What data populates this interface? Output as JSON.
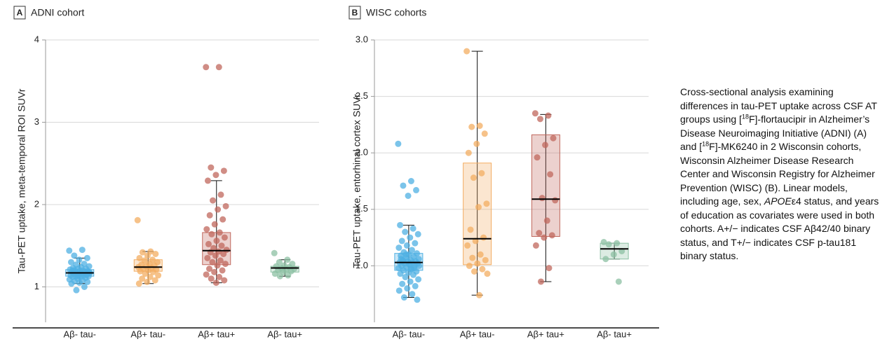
{
  "chart_data": [
    {
      "type": "box",
      "panel_label": "A",
      "title": "ADNI cohort",
      "y_label": "Tau-PET uptake, meta-temporal ROI SUVr",
      "categories": [
        "Aβ- tau-",
        "Aβ+ tau-",
        "Aβ+ tau+",
        "Aβ- tau+"
      ],
      "ylim": [
        0.57,
        4
      ],
      "yticks": [
        1,
        2,
        3,
        4
      ],
      "grid": true,
      "boxes": [
        {
          "color": "#4fb0e3",
          "low": 1.04,
          "q1": 1.13,
          "median": 1.17,
          "q3": 1.21,
          "high": 1.35,
          "points": [
            1.44,
            1.45,
            1.38,
            1.35,
            1.33,
            1.3,
            1.28,
            1.27,
            1.25,
            1.24,
            1.23,
            1.22,
            1.22,
            1.21,
            1.2,
            1.2,
            1.19,
            1.19,
            1.18,
            1.18,
            1.17,
            1.17,
            1.16,
            1.16,
            1.15,
            1.15,
            1.14,
            1.14,
            1.13,
            1.13,
            1.12,
            1.12,
            1.11,
            1.1,
            1.09,
            1.08,
            1.07,
            1.06,
            1.05,
            1.04,
            1.0,
            0.96,
            1.18,
            1.16,
            1.2,
            1.15,
            1.13
          ]
        },
        {
          "color": "#f3ad62",
          "low": 1.04,
          "q1": 1.19,
          "median": 1.24,
          "q3": 1.33,
          "high": 1.43,
          "points": [
            1.81,
            1.43,
            1.42,
            1.4,
            1.38,
            1.35,
            1.33,
            1.32,
            1.3,
            1.28,
            1.27,
            1.26,
            1.25,
            1.24,
            1.23,
            1.22,
            1.21,
            1.2,
            1.19,
            1.18,
            1.16,
            1.14,
            1.12,
            1.1,
            1.08,
            1.06,
            1.04
          ]
        },
        {
          "color": "#c0675c",
          "low": 1.05,
          "q1": 1.27,
          "median": 1.44,
          "q3": 1.66,
          "high": 2.29,
          "points": [
            3.67,
            3.67,
            2.45,
            2.41,
            2.36,
            2.29,
            2.12,
            2.05,
            1.98,
            1.94,
            1.87,
            1.82,
            1.76,
            1.7,
            1.66,
            1.64,
            1.6,
            1.56,
            1.52,
            1.5,
            1.47,
            1.45,
            1.43,
            1.42,
            1.4,
            1.38,
            1.35,
            1.32,
            1.3,
            1.28,
            1.26,
            1.22,
            1.2,
            1.18,
            1.15,
            1.12,
            1.1,
            1.08,
            1.05
          ]
        },
        {
          "color": "#8cc0a3",
          "low": 1.13,
          "q1": 1.18,
          "median": 1.23,
          "q3": 1.25,
          "high": 1.33,
          "points": [
            1.41,
            1.33,
            1.3,
            1.28,
            1.26,
            1.25,
            1.24,
            1.23,
            1.22,
            1.21,
            1.2,
            1.19,
            1.18,
            1.16,
            1.14,
            1.13
          ]
        }
      ]
    },
    {
      "type": "box",
      "panel_label": "B",
      "title": "WISC cohorts",
      "y_label": "Tau-PET uptake, entorhinal cortex SUVr",
      "categories": [
        "Aβ- tau-",
        "Aβ+ tau-",
        "Aβ+ tau+",
        "Aβ- tau+"
      ],
      "ylim": [
        0.5,
        3
      ],
      "yticks": [
        {
          "value": 1,
          "label": "1.0"
        },
        1.5,
        {
          "value": 2,
          "label": "2.0"
        },
        2.5,
        {
          "value": 3,
          "label": "3.0"
        }
      ],
      "grid": true,
      "boxes": [
        {
          "color": "#4fb0e3",
          "low": 0.72,
          "q1": 0.96,
          "median": 1.03,
          "q3": 1.11,
          "high": 1.36,
          "points": [
            2.08,
            1.75,
            1.71,
            1.67,
            1.62,
            1.36,
            1.33,
            1.3,
            1.28,
            1.25,
            1.22,
            1.2,
            1.18,
            1.16,
            1.14,
            1.12,
            1.11,
            1.1,
            1.09,
            1.08,
            1.07,
            1.06,
            1.05,
            1.05,
            1.04,
            1.04,
            1.03,
            1.03,
            1.02,
            1.02,
            1.01,
            1.0,
            1.0,
            0.99,
            0.98,
            0.97,
            0.96,
            0.95,
            0.94,
            0.93,
            0.92,
            0.9,
            0.88,
            0.86,
            0.84,
            0.82,
            0.8,
            0.78,
            0.75,
            0.72,
            0.7,
            1.02,
            1.06,
            0.98,
            1.1,
            1.0,
            0.97,
            1.04
          ]
        },
        {
          "color": "#f3ad62",
          "low": 0.74,
          "q1": 1.01,
          "median": 1.24,
          "q3": 1.91,
          "high": 2.9,
          "points": [
            2.9,
            2.24,
            2.23,
            2.17,
            2.08,
            2.0,
            1.82,
            1.78,
            1.55,
            1.52,
            1.32,
            1.25,
            1.22,
            1.18,
            1.1,
            1.07,
            1.05,
            1.02,
            1.0,
            0.97,
            0.95,
            0.93,
            0.74
          ]
        },
        {
          "color": "#c0675c",
          "low": 0.86,
          "q1": 1.26,
          "median": 1.59,
          "q3": 2.16,
          "high": 2.34,
          "points": [
            2.35,
            2.33,
            2.3,
            2.13,
            2.07,
            1.96,
            1.81,
            1.6,
            1.58,
            1.4,
            1.29,
            1.27,
            1.25,
            1.18,
            0.98,
            0.86
          ]
        },
        {
          "color": "#8cc0a3",
          "low": 1.06,
          "q1": 1.06,
          "median": 1.15,
          "q3": 1.2,
          "high": 1.2,
          "points": [
            1.21,
            1.2,
            1.19,
            1.13,
            1.1,
            1.06,
            0.86
          ]
        }
      ]
    }
  ],
  "caption": [
    "Cross-sectional analysis examining differences in tau-PET uptake across CSF AT groups using [",
    "18",
    "F]-flortaucipir in Alzheimer’s Disease Neuroimaging Initiative (ADNI) (A) and [",
    "18",
    "F]-MK6240 in 2 Wisconsin cohorts, Wisconsin Alzheimer Disease Research Center and Wisconsin Registry for Alzheimer Prevention (WISC) (B). Linear models, including age, sex, ",
    "APOE",
    "ε4 status, and years of education as covariates were used in both cohorts. A+/− indicates CSF Aβ42/40 binary status, and T+/− indicates CSF p-tau181 binary status."
  ]
}
